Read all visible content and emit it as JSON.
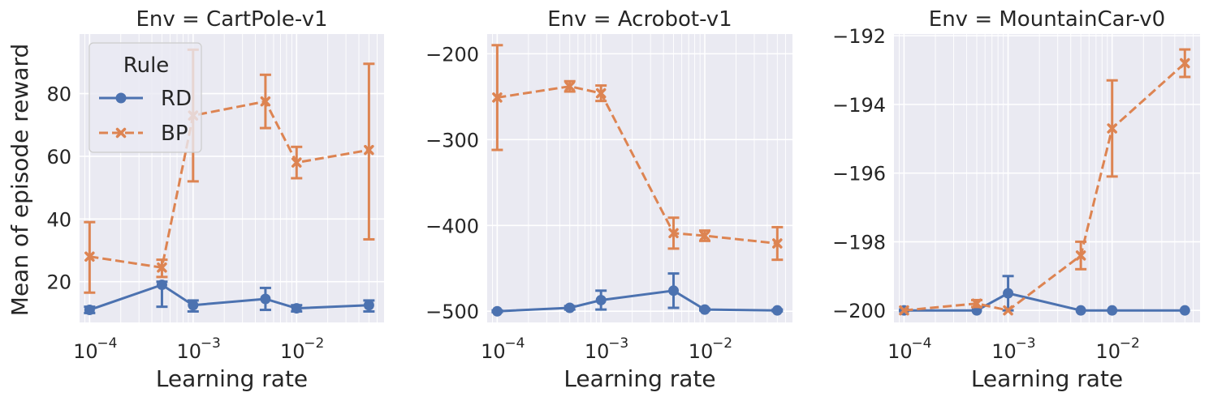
{
  "figure": {
    "ylabel": "Mean of episode reward",
    "xlabel": "Learning rate",
    "legend": {
      "title": "Rule",
      "entries": [
        {
          "label": "RD",
          "color": "#4c72b0",
          "style": "solid",
          "marker": "circle"
        },
        {
          "label": "BP",
          "color": "#dd8452",
          "style": "dashed",
          "marker": "x"
        }
      ]
    },
    "background": "#eaeaf2",
    "grid_color": "#ffffff"
  },
  "chart_data": [
    {
      "type": "line",
      "title": "Env = CartPole-v1",
      "xlabel": "Learning rate",
      "ylabel": "Mean of episode reward",
      "xscale": "log",
      "xlim": [
        8e-05,
        0.07
      ],
      "ylim": [
        7,
        99
      ],
      "xticks": [
        0.0001,
        0.001,
        0.01
      ],
      "xtick_labels": [
        "10",
        "10",
        "10"
      ],
      "xtick_exponents": [
        "−4",
        "−3",
        "−2"
      ],
      "yticks": [
        20,
        40,
        60,
        80
      ],
      "ytick_labels": [
        "20",
        "40",
        "60",
        "80"
      ],
      "legend_position": "upper-left",
      "x": [
        0.0001,
        0.0005,
        0.001,
        0.005,
        0.01,
        0.05
      ],
      "series": [
        {
          "name": "RD",
          "values": [
            11,
            19,
            12.5,
            14.5,
            11.5,
            12.5
          ],
          "err_low": [
            10,
            12,
            10.5,
            11,
            10.5,
            10.5
          ],
          "err_high": [
            12,
            20,
            14,
            18,
            12.5,
            14
          ]
        },
        {
          "name": "BP",
          "values": [
            28,
            24.5,
            73,
            77.5,
            58,
            62
          ],
          "err_low": [
            16.5,
            21.5,
            52,
            69,
            53,
            33.5
          ],
          "err_high": [
            39,
            27,
            94,
            86,
            63,
            89.5
          ]
        }
      ]
    },
    {
      "type": "line",
      "title": "Env = Acrobot-v1",
      "xlabel": "Learning rate",
      "ylabel": "",
      "xscale": "log",
      "xlim": [
        8e-05,
        0.07
      ],
      "ylim": [
        -513,
        -177
      ],
      "xticks": [
        0.0001,
        0.001,
        0.01
      ],
      "xtick_labels": [
        "10",
        "10",
        "10"
      ],
      "xtick_exponents": [
        "−4",
        "−3",
        "−2"
      ],
      "yticks": [
        -500,
        -400,
        -300,
        -200
      ],
      "ytick_labels": [
        "−500",
        "−400",
        "−300",
        "−200"
      ],
      "x": [
        0.0001,
        0.0005,
        0.001,
        0.005,
        0.01,
        0.05
      ],
      "series": [
        {
          "name": "RD",
          "values": [
            -500,
            -496,
            -487,
            -476,
            -498,
            -499
          ],
          "err_low": [
            -501,
            -498,
            -498,
            -496,
            -499,
            -500
          ],
          "err_high": [
            -499,
            -494,
            -476,
            -456,
            -497,
            -498
          ]
        },
        {
          "name": "BP",
          "values": [
            -251,
            -238,
            -246,
            -409,
            -412,
            -421
          ],
          "err_low": [
            -312,
            -244,
            -255,
            -427,
            -418,
            -440
          ],
          "err_high": [
            -190,
            -232,
            -237,
            -391,
            -406,
            -402
          ]
        }
      ]
    },
    {
      "type": "line",
      "title": "Env = MountainCar-v0",
      "xlabel": "Learning rate",
      "ylabel": "",
      "xscale": "log",
      "xlim": [
        8e-05,
        0.07
      ],
      "ylim": [
        -200.35,
        -191.95
      ],
      "xticks": [
        0.0001,
        0.001,
        0.01
      ],
      "xtick_labels": [
        "10",
        "10",
        "10"
      ],
      "xtick_exponents": [
        "−4",
        "−3",
        "−2"
      ],
      "yticks": [
        -200,
        -198,
        -196,
        -194,
        -192
      ],
      "ytick_labels": [
        "−200",
        "−198",
        "−196",
        "−194",
        "−192"
      ],
      "x": [
        0.0001,
        0.0005,
        0.001,
        0.005,
        0.01,
        0.05
      ],
      "series": [
        {
          "name": "RD",
          "values": [
            -200,
            -200,
            -199.5,
            -200,
            -200,
            -200
          ],
          "err_low": [
            -200,
            -200,
            -200,
            -200,
            -200,
            -200
          ],
          "err_high": [
            -200,
            -200,
            -199,
            -200,
            -200,
            -200
          ]
        },
        {
          "name": "BP",
          "values": [
            -200,
            -199.8,
            -200,
            -198.4,
            -194.7,
            -192.8
          ],
          "err_low": [
            -200,
            -199.9,
            -200,
            -198.8,
            -196.1,
            -193.2
          ],
          "err_high": [
            -200,
            -199.7,
            -200,
            -198,
            -193.3,
            -192.4
          ]
        }
      ]
    }
  ]
}
